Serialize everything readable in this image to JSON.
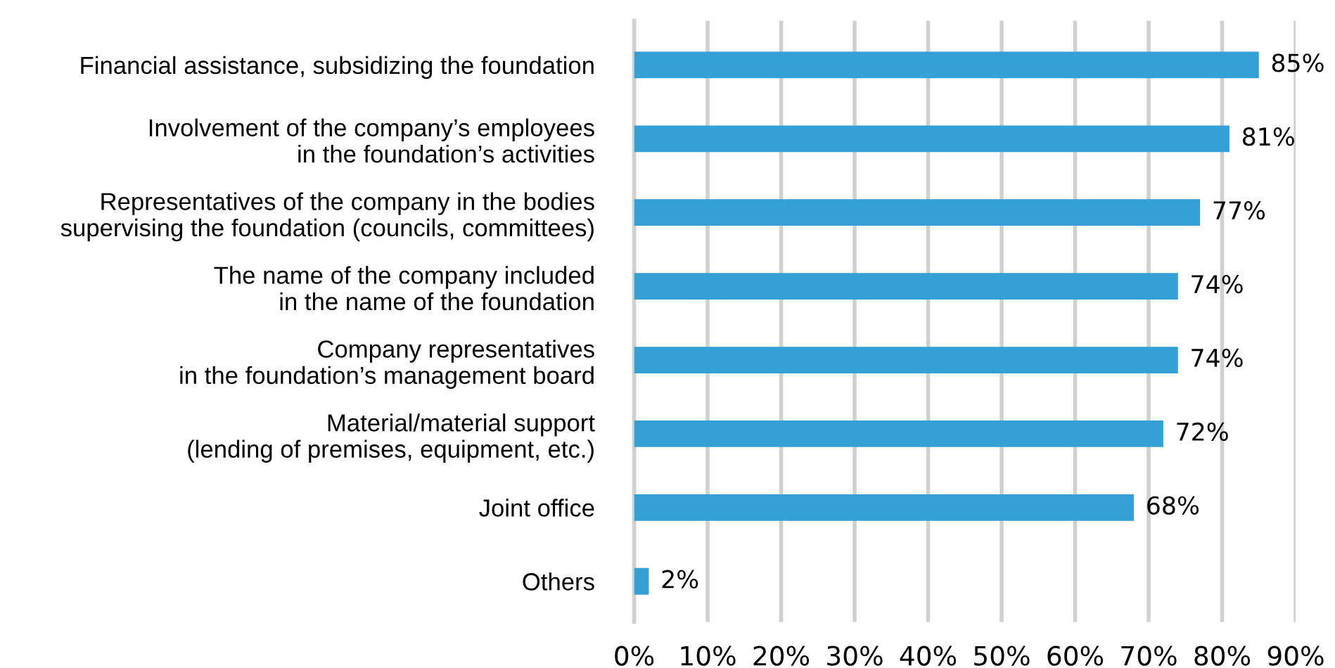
{
  "chart_data": {
    "type": "bar",
    "orientation": "horizontal",
    "categories": [
      "Financial assistance, subsidizing the foundation",
      "Involvement of the company’s employees\nin the foundation’s activities",
      "Representatives of the company in the bodies\nsupervising the foundation (councils, committees)",
      "The name of the company included\nin the name of the foundation",
      "Company representatives\nin the foundation’s management board",
      "Material/material support\n(lending of premises, equipment, etc.)",
      "Joint office",
      "Others"
    ],
    "values": [
      85,
      81,
      77,
      74,
      74,
      72,
      68,
      2
    ],
    "value_labels": [
      "85%",
      "81%",
      "77%",
      "74%",
      "74%",
      "72%",
      "68%",
      "2%"
    ],
    "color": "#35a0d6",
    "xlim": [
      0,
      90
    ],
    "xticks": [
      {
        "value": 0,
        "label": "0%"
      },
      {
        "value": 10,
        "label": "10%"
      },
      {
        "value": 20,
        "label": "20%"
      },
      {
        "value": 30,
        "label": "30%"
      },
      {
        "value": 40,
        "label": "40%"
      },
      {
        "value": 50,
        "label": "50%"
      },
      {
        "value": 60,
        "label": "60%"
      },
      {
        "value": 70,
        "label": "70%"
      },
      {
        "value": 80,
        "label": "80%"
      },
      {
        "value": 90,
        "label": "90%"
      }
    ],
    "grid": "x"
  }
}
